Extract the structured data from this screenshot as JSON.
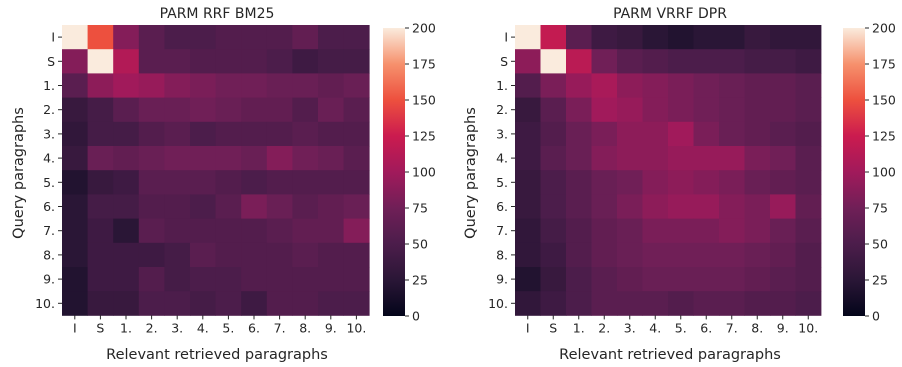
{
  "chart_data": [
    {
      "type": "heatmap",
      "title": "PARM RRF BM25",
      "xlabel": "Relevant retrieved paragraphs",
      "ylabel": "Query paragraphs",
      "x_categories": [
        "I",
        "S",
        "1.",
        "2.",
        "3.",
        "4.",
        "5.",
        "6.",
        "7.",
        "8.",
        "9.",
        "10."
      ],
      "y_categories": [
        "I",
        "S",
        "1.",
        "2.",
        "3.",
        "4.",
        "5.",
        "6.",
        "7.",
        "8.",
        "9.",
        "10."
      ],
      "values": [
        [
          200,
          150,
          85,
          60,
          50,
          50,
          55,
          55,
          55,
          65,
          50,
          50
        ],
        [
          85,
          200,
          110,
          60,
          60,
          55,
          55,
          55,
          50,
          40,
          45,
          45
        ],
        [
          60,
          90,
          100,
          95,
          85,
          80,
          75,
          75,
          70,
          70,
          65,
          70
        ],
        [
          35,
          45,
          60,
          70,
          70,
          75,
          70,
          65,
          65,
          55,
          70,
          60
        ],
        [
          30,
          45,
          45,
          55,
          60,
          50,
          55,
          55,
          55,
          60,
          55,
          55
        ],
        [
          35,
          70,
          65,
          70,
          75,
          75,
          75,
          70,
          85,
          75,
          70,
          60
        ],
        [
          20,
          35,
          40,
          60,
          60,
          60,
          55,
          50,
          55,
          55,
          55,
          55
        ],
        [
          25,
          45,
          45,
          55,
          55,
          50,
          60,
          80,
          70,
          60,
          65,
          70
        ],
        [
          25,
          40,
          25,
          60,
          55,
          55,
          55,
          55,
          60,
          65,
          65,
          85
        ],
        [
          25,
          40,
          40,
          40,
          45,
          60,
          55,
          55,
          55,
          60,
          55,
          55
        ],
        [
          20,
          40,
          40,
          55,
          45,
          50,
          50,
          55,
          55,
          55,
          55,
          55
        ],
        [
          20,
          35,
          35,
          50,
          50,
          45,
          50,
          40,
          55,
          55,
          50,
          50
        ]
      ],
      "colorbar": {
        "min": 0,
        "max": 200,
        "ticks": [
          0,
          25,
          50,
          75,
          100,
          125,
          150,
          175,
          200
        ]
      },
      "grid": false
    },
    {
      "type": "heatmap",
      "title": "PARM VRRF DPR",
      "xlabel": "Relevant retrieved paragraphs",
      "ylabel": "Query paragraphs",
      "x_categories": [
        "I",
        "S",
        "1.",
        "2.",
        "3.",
        "4.",
        "5.",
        "6.",
        "7.",
        "8.",
        "9.",
        "10."
      ],
      "y_categories": [
        "I",
        "S",
        "1.",
        "2.",
        "3.",
        "4.",
        "5.",
        "6.",
        "7.",
        "8.",
        "9.",
        "10."
      ],
      "values": [
        [
          200,
          120,
          60,
          40,
          35,
          25,
          20,
          25,
          25,
          35,
          30,
          30
        ],
        [
          90,
          200,
          115,
          75,
          60,
          55,
          50,
          50,
          50,
          45,
          45,
          40
        ],
        [
          55,
          80,
          95,
          105,
          90,
          85,
          80,
          75,
          70,
          65,
          65,
          60
        ],
        [
          35,
          60,
          80,
          100,
          95,
          85,
          80,
          75,
          70,
          65,
          65,
          60
        ],
        [
          40,
          55,
          70,
          80,
          90,
          90,
          100,
          80,
          70,
          65,
          60,
          55
        ],
        [
          40,
          60,
          70,
          85,
          90,
          90,
          95,
          95,
          95,
          80,
          75,
          60
        ],
        [
          35,
          50,
          60,
          70,
          75,
          85,
          90,
          85,
          80,
          70,
          65,
          60
        ],
        [
          35,
          50,
          60,
          70,
          80,
          90,
          95,
          95,
          85,
          80,
          95,
          65
        ],
        [
          30,
          45,
          55,
          65,
          70,
          80,
          80,
          80,
          85,
          80,
          70,
          60
        ],
        [
          30,
          40,
          55,
          65,
          70,
          75,
          75,
          75,
          75,
          70,
          65,
          55
        ],
        [
          20,
          35,
          50,
          60,
          65,
          70,
          70,
          70,
          70,
          65,
          60,
          55
        ],
        [
          30,
          40,
          50,
          60,
          60,
          60,
          55,
          60,
          60,
          55,
          55,
          50
        ]
      ],
      "colorbar": {
        "min": 0,
        "max": 200,
        "ticks": [
          0,
          25,
          50,
          75,
          100,
          125,
          150,
          175,
          200
        ]
      },
      "grid": false
    }
  ]
}
